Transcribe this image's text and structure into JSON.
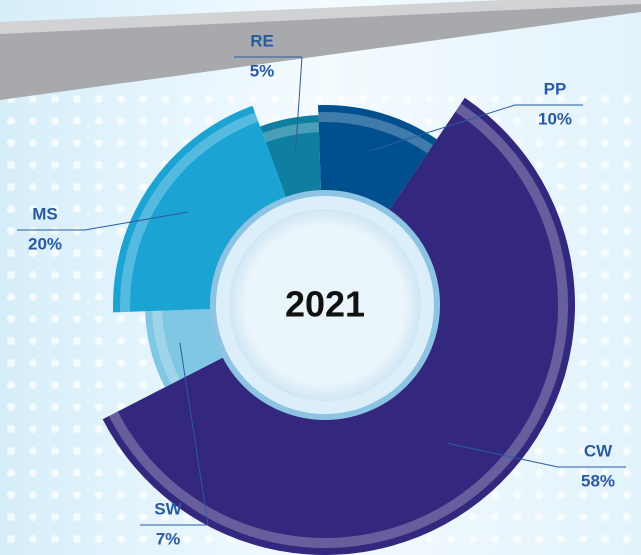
{
  "chart_data": {
    "type": "donut",
    "center_text": "2021",
    "categories": [
      "RE",
      "PP",
      "CW",
      "SW",
      "MS"
    ],
    "values": [
      5,
      10,
      58,
      7,
      20
    ],
    "value_labels": [
      "5%",
      "10%",
      "58%",
      "7%",
      "20%"
    ],
    "colors": [
      "#0e7fa0",
      "#00508f",
      "#33287d",
      "#7fc7e2",
      "#1ba3d4"
    ]
  }
}
